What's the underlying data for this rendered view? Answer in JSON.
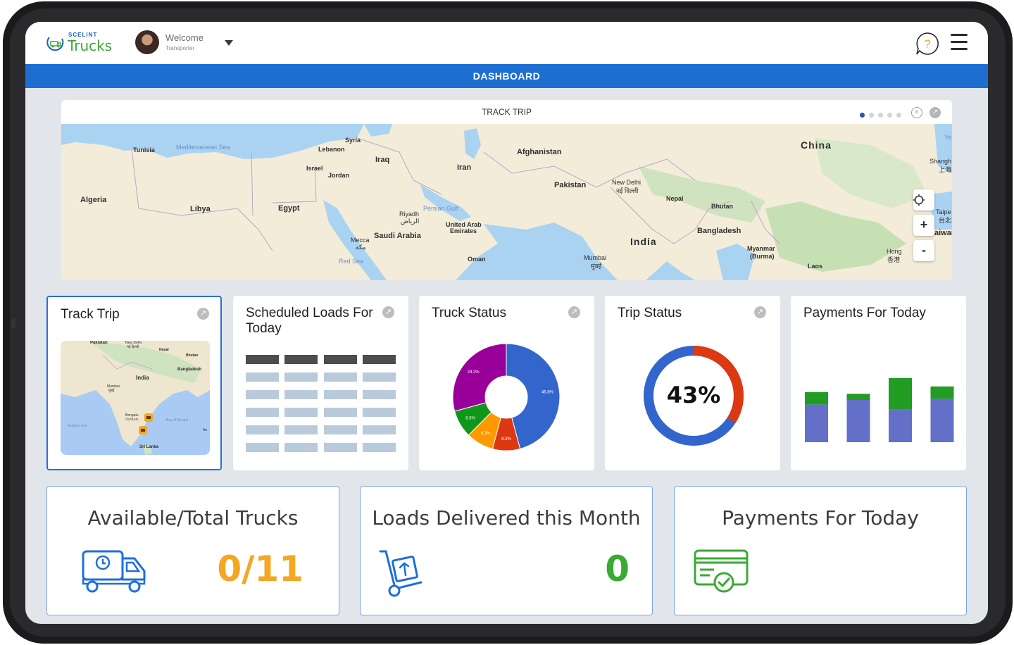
{
  "header": {
    "logo_small": "SCELINT",
    "logo_big": "Trucks",
    "welcome": "Welcome",
    "role": "Transporter",
    "help_glyph": "?"
  },
  "banner": {
    "title": "DASHBOARD"
  },
  "map_card": {
    "title": "TRACK TRIP",
    "pager_count": 5,
    "pager_active": 0,
    "labels": {
      "syria": "Syria",
      "tunisia": "Tunisia",
      "med_sea": "Mediterranean Sea",
      "lebanon": "Lebanon",
      "iraq": "Iraq",
      "afghanistan": "Afghanistan",
      "china": "China",
      "israel": "Israel",
      "jordan": "Jordan",
      "iran": "Iran",
      "shanghai": "Shangh",
      "shanghai_local": "上海",
      "algeria": "Algeria",
      "libya": "Libya",
      "egypt": "Egypt",
      "pakistan": "Pakistan",
      "new_delhi": "New Delhi",
      "new_delhi_local": "नई दिल्ली",
      "nepal": "Nepal",
      "bhutan": "Bhutan",
      "persian_gulf": "Persian Gulf",
      "riyadh": "Riyadh",
      "riyadh_local": "الرياض",
      "uae": "United Arab",
      "uae2": "Emirates",
      "saudi": "Saudi Arabia",
      "bangladesh": "Bangladesh",
      "india": "India",
      "mecca": "Mecca",
      "mecca_local": "مكة",
      "taipei": "Taipe",
      "taipei_local": "台北",
      "taiwan": "aiwar",
      "myanmar": "Myanmar",
      "burma": "(Burma)",
      "mumbai": "Mumbai",
      "mumbai_local": "मुंबई",
      "red_sea": "Red Sea",
      "oman": "Oman",
      "laos": "Laos",
      "hong": "Hong",
      "hong_local": "香港",
      "ye": "Ye"
    },
    "controls": {
      "zoom_in": "+",
      "zoom_out": "-"
    }
  },
  "widgets": {
    "track_trip": {
      "title": "Track Trip",
      "minimap_labels": {
        "pakistan": "Pakistan",
        "delhi": "New Delhi",
        "delhi_local": "नई दिल्ली",
        "nepal": "Nepal",
        "bhutan": "Bhutan",
        "bangladesh": "Bangladesh",
        "india": "India",
        "mumbai": "Mumbai",
        "mumbai_local": "मुंबई",
        "bengaluru": "Bengalu",
        "bengaluru_local": "ಬೆಂಗಳೂರು",
        "bay": "Bay of Bengal",
        "arabian": "Arabian Sea",
        "srilanka": "Sri Lanka",
        "an": "An"
      }
    },
    "scheduled_loads": {
      "title": "Scheduled Loads For Today",
      "columns": 4,
      "rows": 6
    },
    "truck_status": {
      "title": "Truck Status",
      "slices": [
        {
          "label": "45.8%",
          "value": 45.8,
          "color": "#3366cc"
        },
        {
          "label": "8.3%",
          "value": 8.3,
          "color": "#dc3912"
        },
        {
          "label": "8.3%",
          "value": 8.3,
          "color": "#ff9900"
        },
        {
          "label": "8.3%",
          "value": 8.3,
          "color": "#109618"
        },
        {
          "label": "29.2%",
          "value": 29.2,
          "color": "#990099"
        }
      ]
    },
    "trip_status": {
      "title": "Trip Status",
      "percent_label": "43%",
      "percent": 0.43,
      "colors": {
        "main": "#3366cc",
        "rest": "#dc3912"
      }
    },
    "payments_today": {
      "title": "Payments For Today",
      "bars": [
        {
          "bottom": 0.67,
          "top": 0.22
        },
        {
          "bottom": 0.75,
          "top": 0.11
        },
        {
          "bottom": 0.58,
          "top": 0.56
        },
        {
          "bottom": 0.77,
          "top": 0.22
        }
      ],
      "colors": {
        "bottom": "#6470c8",
        "top": "#229c22"
      }
    }
  },
  "stats": {
    "trucks": {
      "title": "Available/Total Trucks",
      "value": "0/11",
      "color": "#f5a623",
      "icon": "truck-clock-icon"
    },
    "loads": {
      "title": "Loads Delivered this Month",
      "value": "0",
      "color": "#3aaa35",
      "icon": "hand-truck-icon"
    },
    "payments": {
      "title": "Payments For Today",
      "value": "",
      "color": "#3aaa35",
      "icon": "card-check-icon"
    }
  }
}
